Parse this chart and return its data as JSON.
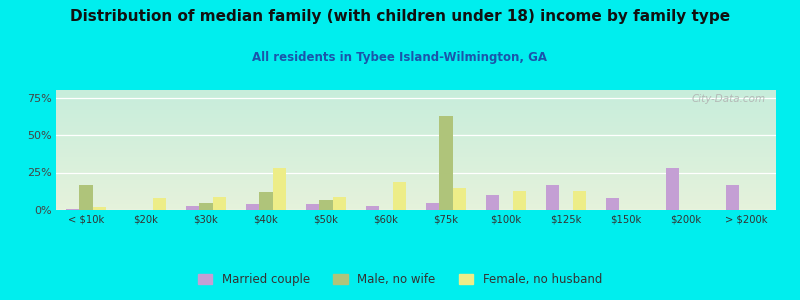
{
  "title": "Distribution of median family (with children under 18) income by family type",
  "subtitle": "All residents in Tybee Island-Wilmington, GA",
  "categories": [
    "< $10k",
    "$20k",
    "$30k",
    "$40k",
    "$50k",
    "$60k",
    "$75k",
    "$100k",
    "$125k",
    "$150k",
    "$200k",
    "> $200k"
  ],
  "married_couple": [
    1,
    0,
    3,
    4,
    4,
    3,
    5,
    10,
    17,
    8,
    28,
    17
  ],
  "male_no_wife": [
    17,
    0,
    5,
    12,
    7,
    0,
    63,
    0,
    0,
    0,
    0,
    0
  ],
  "female_no_husband": [
    2,
    8,
    9,
    28,
    9,
    19,
    15,
    13,
    13,
    0,
    0,
    0
  ],
  "bar_colors": {
    "married_couple": "#c49fd4",
    "male_no_wife": "#afc47a",
    "female_no_husband": "#eded88"
  },
  "outer_bg": "#00eeee",
  "ylim": [
    0,
    80
  ],
  "yticks": [
    0,
    25,
    50,
    75
  ],
  "ytick_labels": [
    "0%",
    "25%",
    "50%",
    "75%"
  ],
  "watermark": "City-Data.com",
  "legend_labels": [
    "Married couple",
    "Male, no wife",
    "Female, no husband"
  ],
  "title_fontsize": 11,
  "subtitle_fontsize": 8.5,
  "bar_width": 0.22
}
